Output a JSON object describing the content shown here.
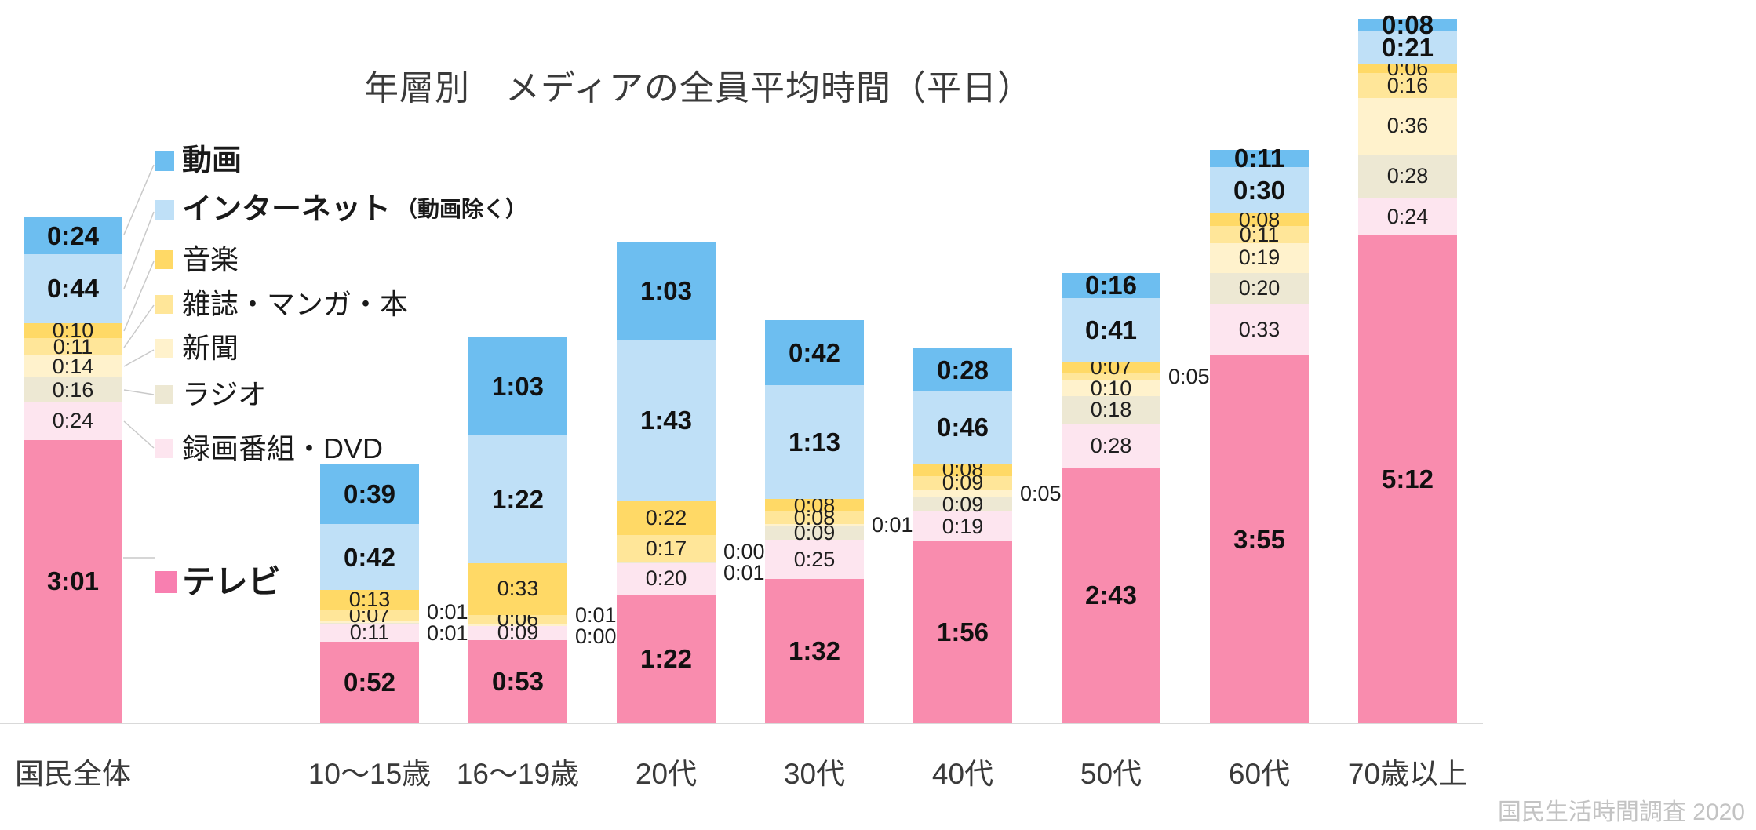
{
  "title": "年層別　メディアの全員平均時間（平日）",
  "source_note": "国民生活時間調査 2020",
  "legend": {
    "items": [
      {
        "label": "動画",
        "note": "",
        "color": "#6dbef0",
        "bold": true
      },
      {
        "label": "インターネット",
        "note": "（動画除く）",
        "color": "#bfe0f7",
        "bold": true
      },
      {
        "label": "音楽",
        "note": "",
        "color": "#ffd966",
        "bold": false
      },
      {
        "label": "雑誌・マンガ・本",
        "note": "",
        "color": "#ffe699",
        "bold": false
      },
      {
        "label": "新聞",
        "note": "",
        "color": "#fff2cc",
        "bold": false
      },
      {
        "label": "ラジオ",
        "note": "",
        "color": "#ede8d3",
        "bold": false
      },
      {
        "label": "録画番組・DVD",
        "note": "",
        "color": "#fde5ef",
        "bold": false
      },
      {
        "label": "テレビ",
        "note": "",
        "color": "#f87fb0",
        "bold": true
      }
    ]
  },
  "chart_data": {
    "type": "bar",
    "stacked": true,
    "value_format": "h:mm",
    "title": "年層別　メディアの全員平均時間（平日）",
    "source": "国民生活時間調査 2020",
    "legend_position": "upper-left overlay",
    "grid": false,
    "categories": [
      "国民全体",
      "10～15歳",
      "16～19歳",
      "20代",
      "30代",
      "40代",
      "50代",
      "60代",
      "70歳以上"
    ],
    "stack_order_top_to_bottom": [
      "動画",
      "インターネット（動画除く）",
      "音楽",
      "雑誌・マンガ・本",
      "新聞",
      "ラジオ",
      "録画番組・DVD",
      "テレビ"
    ],
    "series": [
      {
        "name": "動画",
        "color": "#6dbef0",
        "bold_labels": true,
        "values": [
          "0:24",
          "0:39",
          "1:03",
          "1:03",
          "0:42",
          "0:28",
          "0:16",
          "0:11",
          "0:08"
        ]
      },
      {
        "name": "インターネット（動画除く）",
        "color": "#bfe0f7",
        "bold_labels": true,
        "values": [
          "0:44",
          "0:42",
          "1:22",
          "1:43",
          "1:13",
          "0:46",
          "0:41",
          "0:30",
          "0:21"
        ]
      },
      {
        "name": "音楽",
        "color": "#ffd966",
        "bold_labels": false,
        "values": [
          "0:10",
          "0:13",
          "0:33",
          "0:22",
          "0:08",
          "0:08",
          "0:07",
          "0:08",
          "0:06"
        ]
      },
      {
        "name": "雑誌・マンガ・本",
        "color": "#ffe699",
        "bold_labels": false,
        "values": [
          "0:11",
          "0:07",
          "0:06",
          "0:17",
          "0:08",
          "0:09",
          "0:05",
          "0:11",
          "0:16"
        ]
      },
      {
        "name": "新聞",
        "color": "#fff2cc",
        "bold_labels": false,
        "values": [
          "0:14",
          "0:01",
          "0:01",
          "0:00",
          "0:01",
          "0:05",
          "0:10",
          "0:19",
          "0:36"
        ]
      },
      {
        "name": "ラジオ",
        "color": "#ede8d3",
        "bold_labels": false,
        "values": [
          "0:16",
          "0:01",
          "0:00",
          "0:01",
          "0:09",
          "0:09",
          "0:18",
          "0:20",
          "0:28"
        ]
      },
      {
        "name": "録画番組・DVD",
        "color": "#fde5ef",
        "bold_labels": false,
        "values": [
          "0:24",
          "0:11",
          "0:09",
          "0:20",
          "0:25",
          "0:19",
          "0:28",
          "0:33",
          "0:24"
        ]
      },
      {
        "name": "テレビ",
        "color": "#f98cae",
        "bold_labels": true,
        "values": [
          "3:01",
          "0:52",
          "0:53",
          "1:22",
          "1:32",
          "1:56",
          "2:43",
          "3:55",
          "5:12"
        ]
      }
    ],
    "colors": {
      "axis_line": "#d9d9d9",
      "title_text": "#3a3a3a",
      "source_text": "#c3c3c3",
      "label_text": "#1f1f1f"
    }
  }
}
